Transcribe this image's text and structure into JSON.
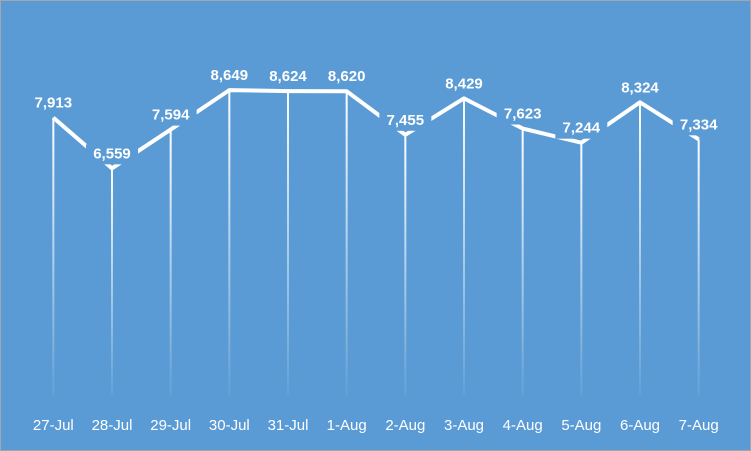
{
  "chart_data": {
    "type": "line",
    "categories": [
      "27-Jul",
      "28-Jul",
      "29-Jul",
      "30-Jul",
      "31-Jul",
      "1-Aug",
      "2-Aug",
      "3-Aug",
      "4-Aug",
      "5-Aug",
      "6-Aug",
      "7-Aug"
    ],
    "values": [
      7913,
      6559,
      7594,
      8649,
      8624,
      8620,
      7455,
      8429,
      7623,
      7244,
      8324,
      7334
    ],
    "value_labels": [
      "7,913",
      "6,559",
      "7,594",
      "8,649",
      "8,624",
      "8,620",
      "7,455",
      "8,429",
      "7,623",
      "7,244",
      "8,324",
      "7,334"
    ],
    "color": "#ffffff",
    "background": "#5b9bd5",
    "ylim": [
      500,
      9000
    ],
    "drop_lines": true
  }
}
